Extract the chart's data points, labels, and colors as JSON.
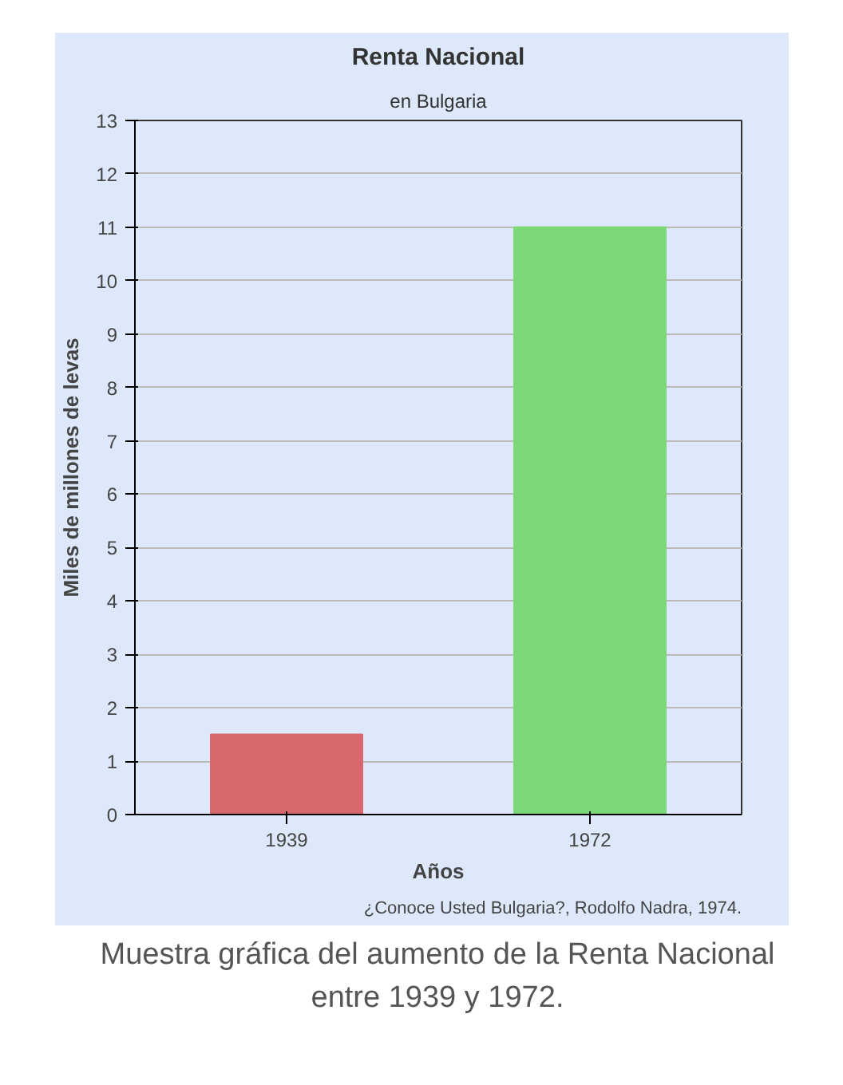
{
  "chart_data": {
    "type": "bar",
    "title": "Renta Nacional",
    "subtitle": "en Bulgaria",
    "xlabel": "Años",
    "ylabel": "Miles de millones de levas",
    "categories": [
      "1939",
      "1972"
    ],
    "values": [
      1.5,
      11
    ],
    "colors": [
      "#d9686e",
      "#7dd879"
    ],
    "ylim": [
      0,
      13
    ],
    "yticks": [
      0,
      1,
      2,
      3,
      4,
      5,
      6,
      7,
      8,
      9,
      10,
      11,
      12,
      13
    ],
    "grid": "y",
    "annotations": [
      "¿Conoce Usted Bulgaria?, Rodolfo Nadra, 1974.",
      "Muestra gráfica del aumento de la Renta Nacional entre 1939 y 1972."
    ]
  }
}
